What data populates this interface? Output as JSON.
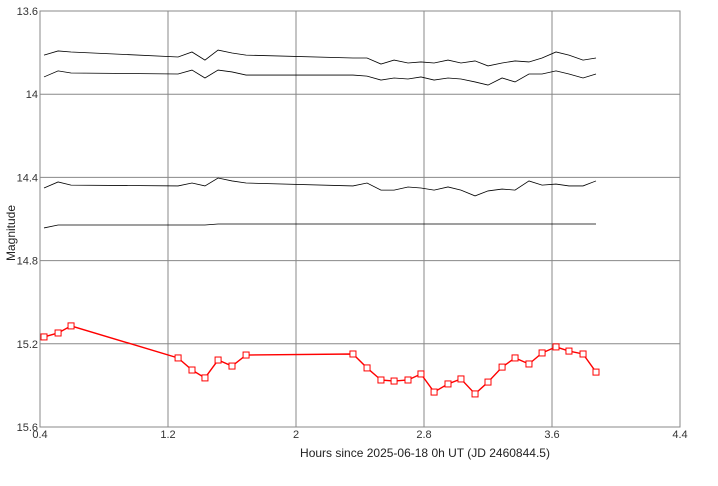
{
  "chart_data": {
    "type": "line",
    "x_label": "Hours since 2025-06-18 0h UT (JD 2460844.5)",
    "y_label": "Magnitude",
    "xlim": [
      0.4,
      4.4
    ],
    "xticks": [
      0.4,
      1.2,
      2,
      2.8,
      3.6,
      4.4
    ],
    "ylim": [
      15.6,
      13.6
    ],
    "yticks": [
      15.6,
      15.2,
      14.8,
      14.4,
      14,
      13.6
    ],
    "grid": true,
    "x": [
      0.425,
      0.513,
      0.594,
      1.263,
      1.35,
      1.431,
      1.513,
      1.6,
      1.688,
      2.356,
      2.444,
      2.531,
      2.613,
      2.7,
      2.781,
      2.863,
      2.95,
      3.031,
      3.119,
      3.2,
      3.288,
      3.369,
      3.456,
      3.538,
      3.625,
      3.706,
      3.794,
      3.875
    ],
    "series": [
      {
        "color": "#000000",
        "marker": "none",
        "values": [
          13.812,
          13.792,
          13.797,
          13.821,
          13.797,
          13.836,
          13.788,
          13.802,
          13.812,
          13.826,
          13.826,
          13.855,
          13.836,
          13.85,
          13.845,
          13.85,
          13.836,
          13.85,
          13.84,
          13.864,
          13.85,
          13.84,
          13.845,
          13.826,
          13.797,
          13.812,
          13.836,
          13.826
        ]
      },
      {
        "color": "#000000",
        "marker": "none",
        "values": [
          13.917,
          13.888,
          13.898,
          13.903,
          13.884,
          13.922,
          13.884,
          13.893,
          13.908,
          13.908,
          13.913,
          13.932,
          13.922,
          13.927,
          13.917,
          13.932,
          13.922,
          13.927,
          13.941,
          13.956,
          13.922,
          13.941,
          13.903,
          13.903,
          13.888,
          13.903,
          13.922,
          13.903
        ]
      },
      {
        "color": "#000000",
        "marker": "none",
        "values": [
          14.451,
          14.422,
          14.437,
          14.441,
          14.427,
          14.441,
          14.403,
          14.417,
          14.427,
          14.441,
          14.427,
          14.461,
          14.461,
          14.446,
          14.451,
          14.461,
          14.446,
          14.461,
          14.489,
          14.465,
          14.456,
          14.461,
          14.417,
          14.437,
          14.432,
          14.441,
          14.441,
          14.417
        ]
      },
      {
        "color": "#000000",
        "marker": "none",
        "values": [
          14.643,
          14.629,
          14.629,
          14.629,
          14.629,
          14.629,
          14.624,
          14.624,
          14.624,
          14.624,
          14.624,
          14.624,
          14.624,
          14.624,
          14.624,
          14.624,
          14.624,
          14.624,
          14.624,
          14.624,
          14.624,
          14.624,
          14.624,
          14.624,
          14.624,
          14.624,
          14.624,
          14.624
        ]
      },
      {
        "color": "#ff0000",
        "marker": "square",
        "values": [
          15.167,
          15.148,
          15.114,
          15.268,
          15.326,
          15.364,
          15.278,
          15.307,
          15.254,
          15.249,
          15.316,
          15.374,
          15.379,
          15.374,
          15.345,
          15.432,
          15.393,
          15.369,
          15.441,
          15.384,
          15.312,
          15.268,
          15.297,
          15.244,
          15.215,
          15.235,
          15.249,
          15.336
        ]
      }
    ]
  }
}
